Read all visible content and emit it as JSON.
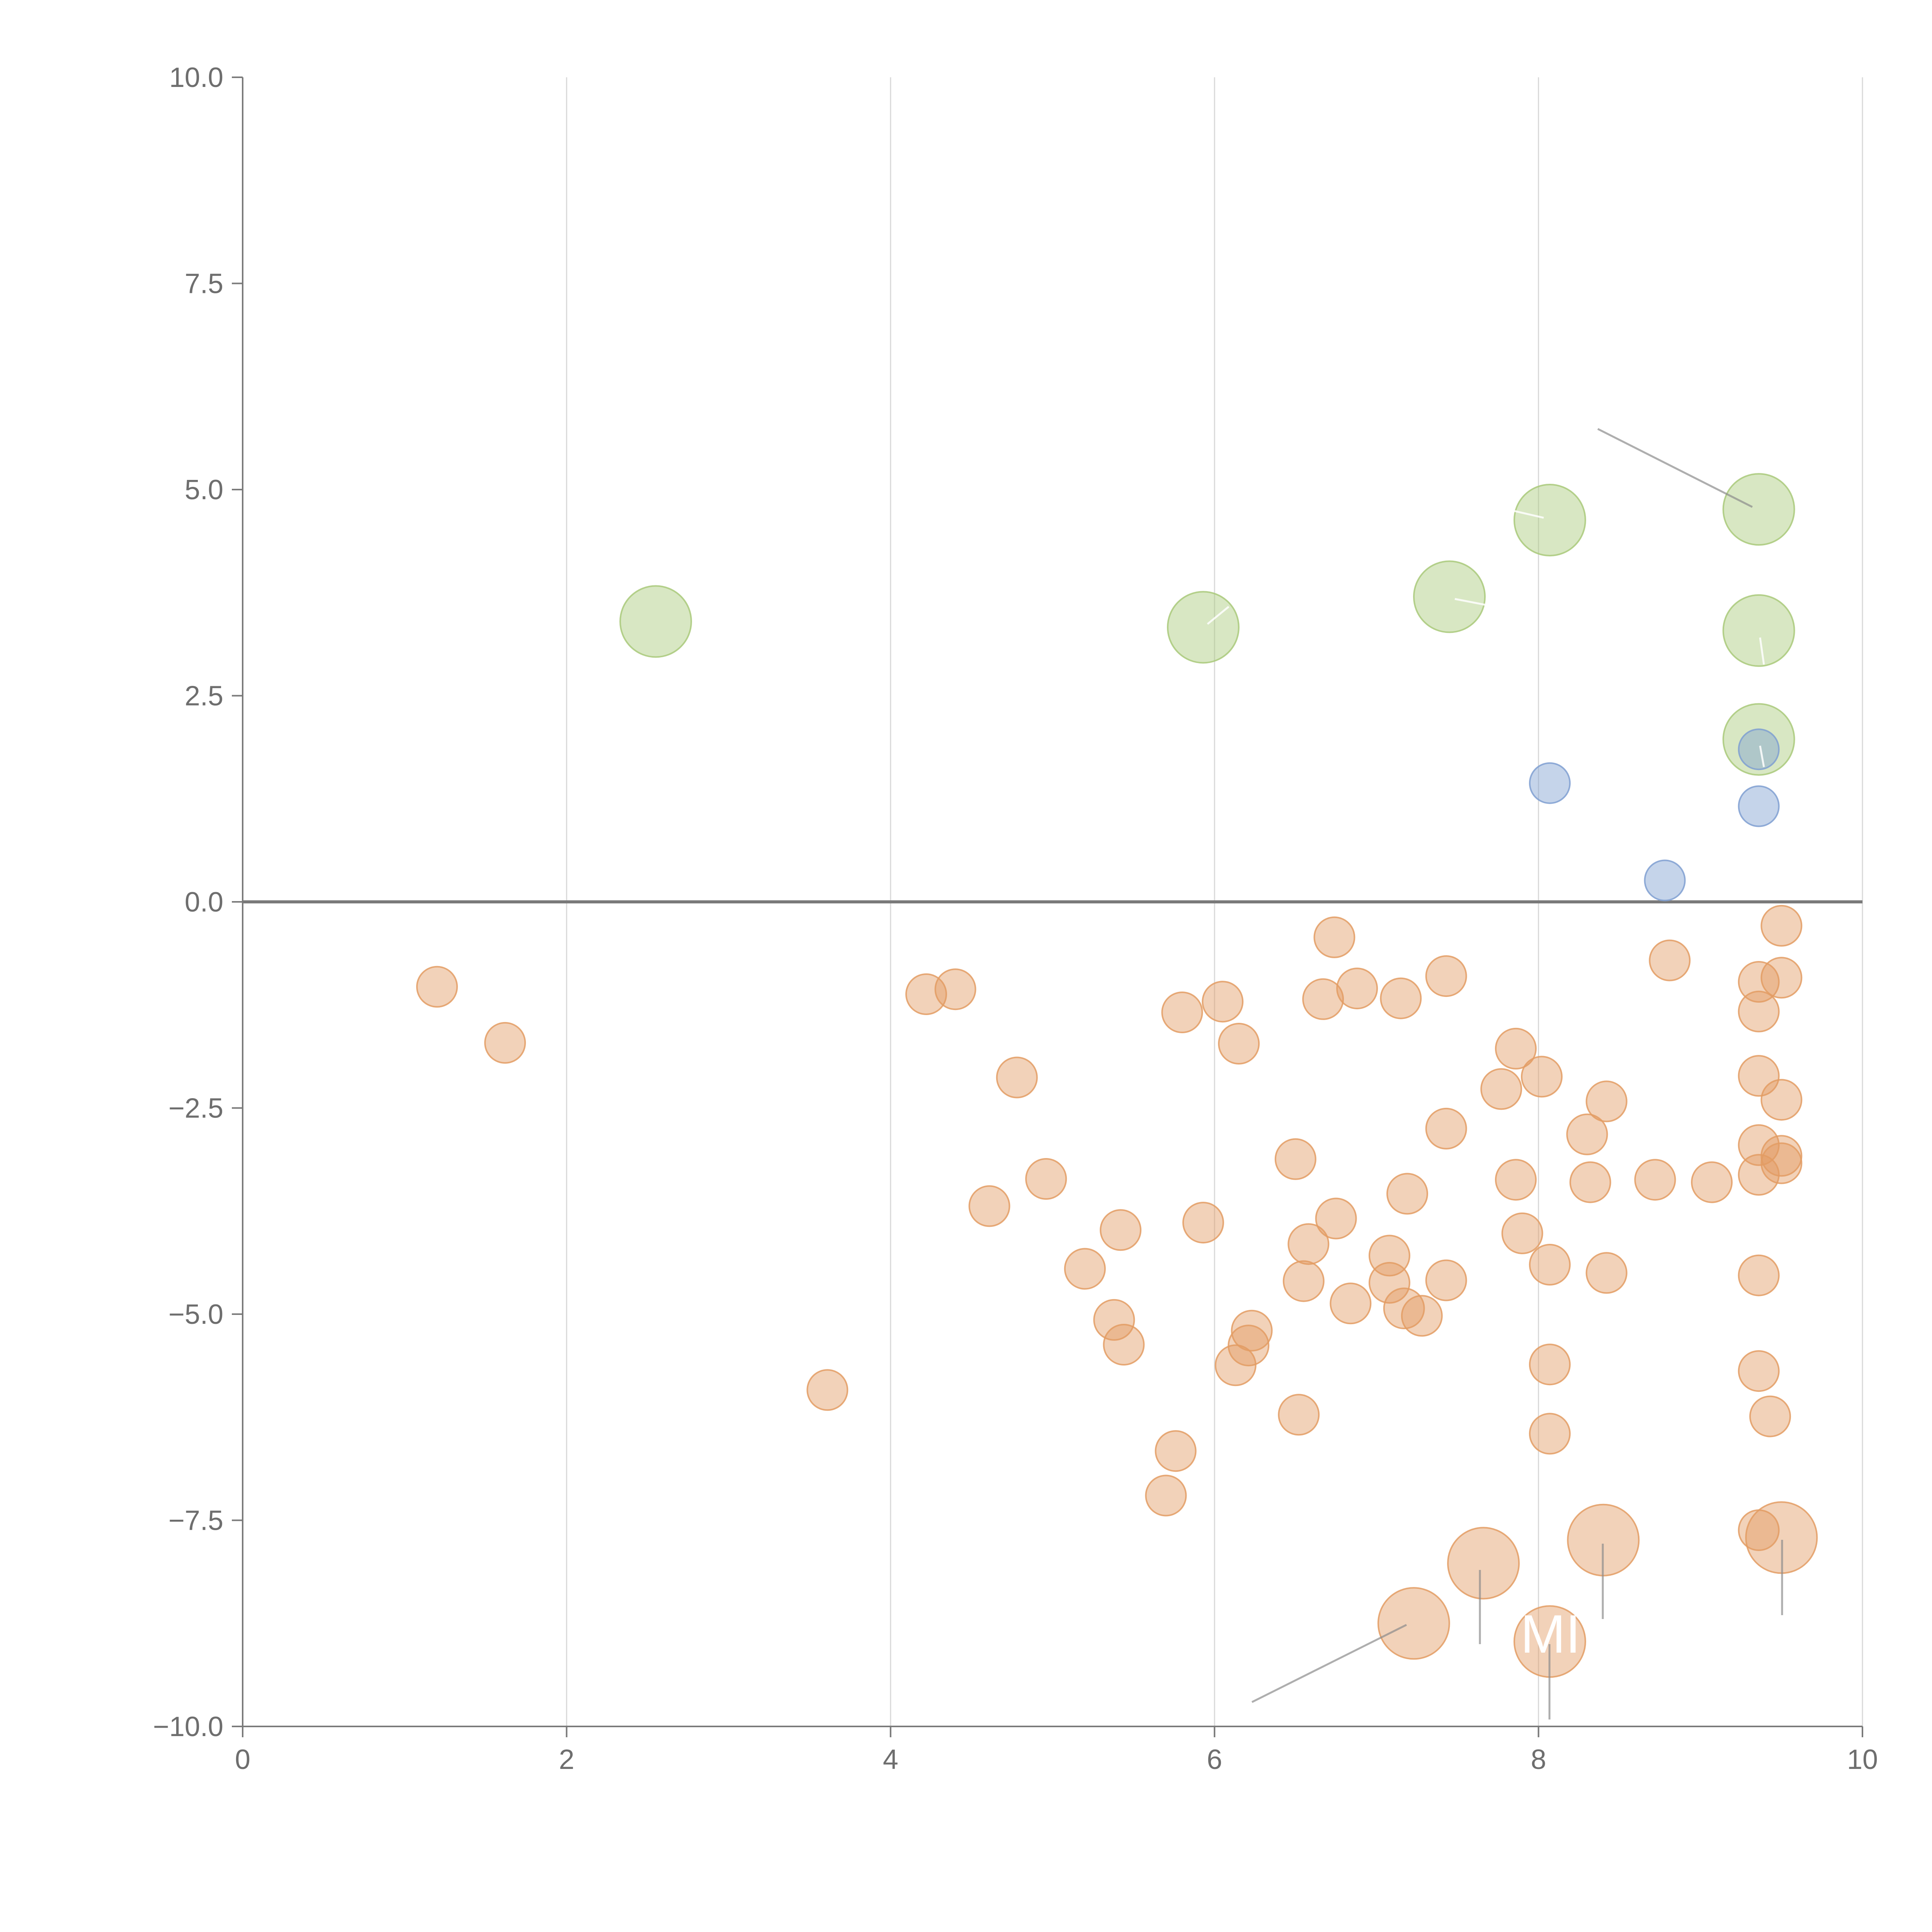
{
  "chart_data": {
    "type": "scatter",
    "title": "",
    "xlabel": "",
    "ylabel": "",
    "xlim": [
      0,
      10
    ],
    "ylim": [
      -10,
      10
    ],
    "grid": "vertical",
    "x_ticks": [
      {
        "value": 0,
        "label": "0"
      },
      {
        "value": 2,
        "label": "2"
      },
      {
        "value": 4,
        "label": "4"
      },
      {
        "value": 6,
        "label": "6"
      },
      {
        "value": 8,
        "label": "8"
      },
      {
        "value": 10,
        "label": "10"
      }
    ],
    "y_ticks": [
      {
        "value": 10,
        "label": "10.0"
      },
      {
        "value": 7.5,
        "label": "7.5"
      },
      {
        "value": 5,
        "label": "5.0"
      },
      {
        "value": 2.5,
        "label": "2.5"
      },
      {
        "value": 0,
        "label": "0.0"
      },
      {
        "value": -2.5,
        "label": "−2.5"
      },
      {
        "value": -5,
        "label": "−5.0"
      },
      {
        "value": -7.5,
        "label": "−7.5"
      },
      {
        "value": -10,
        "label": "−10.0"
      }
    ],
    "series": [
      {
        "name": "green",
        "color": "#a9c97a",
        "size": "large",
        "points": [
          [
            2.55,
            3.4
          ],
          [
            5.93,
            3.33
          ],
          [
            7.45,
            3.7
          ],
          [
            8.07,
            4.63
          ],
          [
            9.36,
            4.76
          ],
          [
            9.36,
            3.29
          ],
          [
            9.36,
            1.97
          ]
        ]
      },
      {
        "name": "blue",
        "color": "#7f9fd1",
        "size": "small",
        "points": [
          [
            8.07,
            1.44
          ],
          [
            9.36,
            1.85
          ],
          [
            9.36,
            1.16
          ],
          [
            8.78,
            0.26
          ]
        ]
      },
      {
        "name": "orange",
        "color": "#e39c63",
        "size": "small",
        "points": [
          [
            1.2,
            -1.03
          ],
          [
            1.62,
            -1.71
          ],
          [
            3.61,
            -5.92
          ],
          [
            4.22,
            -1.12
          ],
          [
            4.4,
            -1.06
          ],
          [
            4.61,
            -3.69
          ],
          [
            4.78,
            -2.13
          ],
          [
            4.96,
            -3.36
          ],
          [
            5.2,
            -4.45
          ],
          [
            5.38,
            -5.07
          ],
          [
            5.42,
            -3.98
          ],
          [
            5.44,
            -5.37
          ],
          [
            5.7,
            -7.2
          ],
          [
            5.76,
            -6.66
          ],
          [
            5.8,
            -1.34
          ],
          [
            5.93,
            -3.89
          ],
          [
            6.05,
            -1.21
          ],
          [
            6.13,
            -5.62
          ],
          [
            6.15,
            -1.72
          ],
          [
            6.21,
            -5.38
          ],
          [
            6.23,
            -5.2
          ],
          [
            6.5,
            -3.12
          ],
          [
            6.52,
            -6.22
          ],
          [
            6.55,
            -4.6
          ],
          [
            6.58,
            -4.15
          ],
          [
            6.67,
            -1.18
          ],
          [
            6.74,
            -0.43
          ],
          [
            6.75,
            -3.84
          ],
          [
            6.84,
            -4.87
          ],
          [
            6.88,
            -1.05
          ],
          [
            7.08,
            -4.29
          ],
          [
            7.08,
            -4.62
          ],
          [
            7.15,
            -1.17
          ],
          [
            7.17,
            -4.93
          ],
          [
            7.19,
            -3.54
          ],
          [
            7.28,
            -5.02
          ],
          [
            7.43,
            -0.9
          ],
          [
            7.43,
            -2.75
          ],
          [
            7.43,
            -4.59
          ],
          [
            7.77,
            -2.27
          ],
          [
            7.86,
            -1.78
          ],
          [
            7.86,
            -3.37
          ],
          [
            7.9,
            -4.02
          ],
          [
            8.02,
            -2.12
          ],
          [
            8.07,
            -4.4
          ],
          [
            8.07,
            -5.61
          ],
          [
            8.07,
            -6.45
          ],
          [
            8.3,
            -2.82
          ],
          [
            8.32,
            -3.4
          ],
          [
            8.42,
            -2.42
          ],
          [
            8.42,
            -4.5
          ],
          [
            8.72,
            -3.37
          ],
          [
            8.81,
            -0.71
          ],
          [
            9.07,
            -3.4
          ],
          [
            9.36,
            -0.97
          ],
          [
            9.36,
            -1.33
          ],
          [
            9.36,
            -2.11
          ],
          [
            9.36,
            -2.95
          ],
          [
            9.36,
            -3.31
          ],
          [
            9.36,
            -4.53
          ],
          [
            9.36,
            -5.69
          ],
          [
            9.36,
            -7.62
          ],
          [
            9.43,
            -6.24
          ],
          [
            9.5,
            -0.29
          ],
          [
            9.5,
            -0.92
          ],
          [
            9.5,
            -2.4
          ],
          [
            9.5,
            -3.08
          ],
          [
            9.5,
            -3.17
          ]
        ]
      },
      {
        "name": "orange-large",
        "color": "#e39c63",
        "size": "large",
        "points": [
          [
            7.23,
            -8.75
          ],
          [
            7.66,
            -8.02
          ],
          [
            8.07,
            -8.97
          ],
          [
            8.4,
            -7.74
          ],
          [
            9.5,
            -7.71
          ]
        ]
      }
    ],
    "annotations": [
      {
        "id": "upper-right",
        "text": ""
      },
      {
        "id": "bottom-center",
        "text": "MI"
      }
    ]
  }
}
